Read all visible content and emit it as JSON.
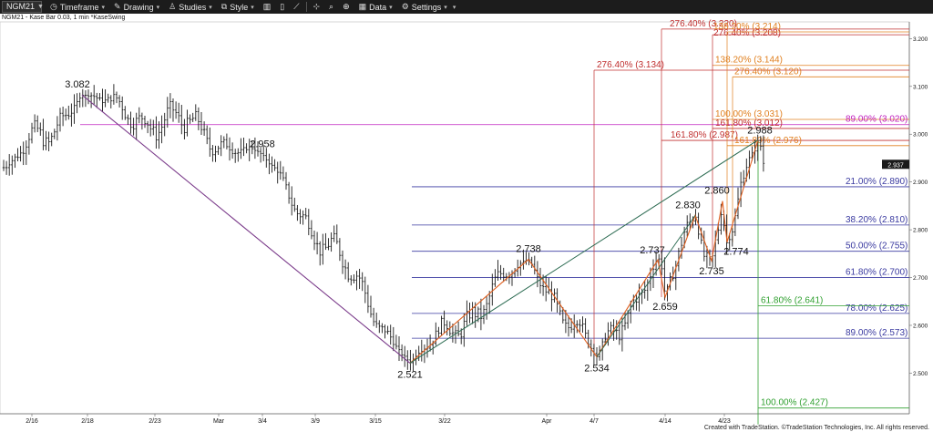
{
  "toolbar": {
    "symbol": "NGM21",
    "timeframe": "Timeframe",
    "drawing": "Drawing",
    "studies": "Studies",
    "style": "Style",
    "data": "Data",
    "settings": "Settings"
  },
  "subtitle": "NGM21 - Kase Bar 0.03, 1 min  *KaseSwing",
  "credit": "Created with TradeStation. ©TradeStation Technologies, Inc. All rights reserved.",
  "colors": {
    "price": "#1a1a1a",
    "swing_down": "#7a3a8a",
    "swing_up": "#e06020",
    "trend": "#2a6a50",
    "fib_blue": "#3a3aa0",
    "fib_red": "#c03030",
    "fib_orange": "#e08020",
    "fib_magenta": "#c020c0",
    "fib_green": "#30a030"
  },
  "chart_data": {
    "type": "ohlc",
    "x_tick_labels": [
      "2/16",
      "2/18",
      "2/23",
      "Mar",
      "3/4",
      "3/9",
      "3/15",
      "3/22",
      "Apr",
      "4/7",
      "4/14",
      "4/23"
    ],
    "y_tick_labels": [
      "2.500",
      "2.600",
      "2.700",
      "2.800",
      "2.900",
      "3.000",
      "3.100",
      "3.200"
    ],
    "ylim": [
      2.415,
      3.235
    ],
    "last_price": "2.937",
    "swing_points": [
      {
        "x": "2/19",
        "y": 3.082,
        "label": "3.082"
      },
      {
        "x": "3/4",
        "y": 2.958,
        "label": "2.958"
      },
      {
        "x": "3/19",
        "y": 2.521,
        "label": "2.521"
      },
      {
        "x": "3/29",
        "y": 2.738,
        "label": "2.738"
      },
      {
        "x": "4/6",
        "y": 2.534,
        "label": "2.534"
      },
      {
        "x": "4/13",
        "y": 2.737,
        "label": "2.737"
      },
      {
        "x": "4/14",
        "y": 2.659,
        "label": "2.659"
      },
      {
        "x": "4/18",
        "y": 2.83,
        "label": "2.830"
      },
      {
        "x": "4/20",
        "y": 2.735,
        "label": "2.735"
      },
      {
        "x": "4/21",
        "y": 2.86,
        "label": "2.860"
      },
      {
        "x": "4/22",
        "y": 2.774,
        "label": "2.774"
      },
      {
        "x": "4/26",
        "y": 2.988,
        "label": "2.988"
      }
    ],
    "retracement_levels": [
      {
        "label": "21.00% (2.890)",
        "value": 2.89
      },
      {
        "label": "38.20% (2.810)",
        "value": 2.81
      },
      {
        "label": "50.00% (2.755)",
        "value": 2.755
      },
      {
        "label": "61.80% (2.700)",
        "value": 2.7
      },
      {
        "label": "78.00% (2.625)",
        "value": 2.625
      },
      {
        "label": "89.00% (2.573)",
        "value": 2.573
      }
    ],
    "extension_levels": [
      {
        "label": "276.40% (3.220)",
        "value": 3.22,
        "color": "red"
      },
      {
        "label": "276.40% (3.208)",
        "value": 3.208,
        "color": "red"
      },
      {
        "label": "138.20% (3.214)",
        "value": 3.214,
        "color": "orange"
      },
      {
        "label": "276.40% (3.134)",
        "value": 3.134,
        "color": "red"
      },
      {
        "label": "138.20% (3.144)",
        "value": 3.144,
        "color": "orange"
      },
      {
        "label": "276.40% (3.120)",
        "value": 3.12,
        "color": "orange"
      },
      {
        "label": "100.00% (3.031)",
        "value": 3.031,
        "color": "orange"
      },
      {
        "label": "89.00% (3.020)",
        "value": 3.02,
        "color": "magenta"
      },
      {
        "label": "161.80% (3.012)",
        "value": 3.012,
        "color": "red"
      },
      {
        "label": "161.80% (2.987)",
        "value": 2.987,
        "color": "red"
      },
      {
        "label": "161.80% (2.976)",
        "value": 2.976,
        "color": "orange"
      },
      {
        "label": "61.80% (2.641)",
        "value": 2.641,
        "color": "green"
      },
      {
        "label": "100.00% (2.427)",
        "value": 2.427,
        "color": "green"
      }
    ]
  }
}
